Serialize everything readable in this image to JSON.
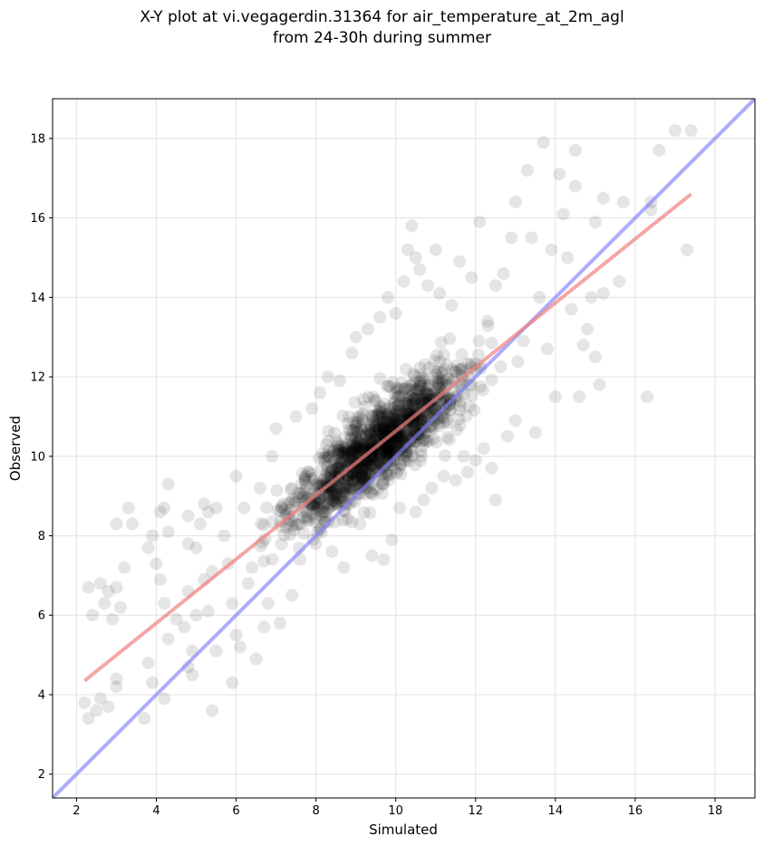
{
  "title": {
    "line1": "X-Y plot at vi.vegagerdin.31364 for air_temperature_at_2m_agl",
    "line2": "from 24-30h during summer"
  },
  "chart_data": {
    "type": "scatter",
    "xlabel": "Simulated",
    "ylabel": "Observed",
    "xlim": [
      1.4,
      19.0
    ],
    "ylim": [
      1.4,
      19.0
    ],
    "xticks": [
      2,
      4,
      6,
      8,
      10,
      12,
      14,
      16,
      18
    ],
    "yticks": [
      2,
      4,
      6,
      8,
      10,
      12,
      14,
      16,
      18
    ],
    "grid": true,
    "point_color": "#000000",
    "point_opacity": 0.1,
    "approx_point_count": 1500,
    "regression_line": {
      "color": "#f08080",
      "x": [
        2.2,
        17.4
      ],
      "y": [
        4.35,
        16.6
      ]
    },
    "identity_line": {
      "color": "#7f7fff",
      "x": [
        1.4,
        19.0
      ],
      "y": [
        1.4,
        19.0
      ]
    },
    "points": [
      [
        2.2,
        3.8
      ],
      [
        2.3,
        3.4
      ],
      [
        2.5,
        3.6
      ],
      [
        2.6,
        3.9
      ],
      [
        2.8,
        3.7
      ],
      [
        2.4,
        6.0
      ],
      [
        2.6,
        6.8
      ],
      [
        2.7,
        6.3
      ],
      [
        2.9,
        5.9
      ],
      [
        2.8,
        6.6
      ],
      [
        2.3,
        6.7
      ],
      [
        3.0,
        8.3
      ],
      [
        3.3,
        8.7
      ],
      [
        3.4,
        8.3
      ],
      [
        3.2,
        7.2
      ],
      [
        3.0,
        6.7
      ],
      [
        3.1,
        6.2
      ],
      [
        3.0,
        4.4
      ],
      [
        3.0,
        4.2
      ],
      [
        3.7,
        3.4
      ],
      [
        3.9,
        4.3
      ],
      [
        3.8,
        4.8
      ],
      [
        4.2,
        3.9
      ],
      [
        3.8,
        7.7
      ],
      [
        3.9,
        8.0
      ],
      [
        4.1,
        8.6
      ],
      [
        4.2,
        8.7
      ],
      [
        4.3,
        8.1
      ],
      [
        4.3,
        9.3
      ],
      [
        4.0,
        7.3
      ],
      [
        4.1,
        6.9
      ],
      [
        4.2,
        6.3
      ],
      [
        4.3,
        5.4
      ],
      [
        4.5,
        5.9
      ],
      [
        4.7,
        5.7
      ],
      [
        4.9,
        5.1
      ],
      [
        4.8,
        4.7
      ],
      [
        4.9,
        4.5
      ],
      [
        4.8,
        6.6
      ],
      [
        4.8,
        7.8
      ],
      [
        4.8,
        8.5
      ],
      [
        5.0,
        7.7
      ],
      [
        5.1,
        8.3
      ],
      [
        5.2,
        8.8
      ],
      [
        5.3,
        8.6
      ],
      [
        5.4,
        7.1
      ],
      [
        5.2,
        6.9
      ],
      [
        5.0,
        6.0
      ],
      [
        5.3,
        6.1
      ],
      [
        5.5,
        5.1
      ],
      [
        5.4,
        3.6
      ],
      [
        5.5,
        8.7
      ],
      [
        5.7,
        8.0
      ],
      [
        5.8,
        7.3
      ],
      [
        5.9,
        6.3
      ],
      [
        5.9,
        4.3
      ],
      [
        6.0,
        5.5
      ],
      [
        6.0,
        9.5
      ],
      [
        6.1,
        5.2
      ],
      [
        6.2,
        8.7
      ],
      [
        6.3,
        6.8
      ],
      [
        6.4,
        7.2
      ],
      [
        6.5,
        4.9
      ],
      [
        6.6,
        9.2
      ],
      [
        6.7,
        5.7
      ],
      [
        6.8,
        6.3
      ],
      [
        6.9,
        10.0
      ],
      [
        7.0,
        10.7
      ],
      [
        7.1,
        5.8
      ],
      [
        7.3,
        8.3
      ],
      [
        7.4,
        6.5
      ],
      [
        7.5,
        11.0
      ],
      [
        7.6,
        7.4
      ],
      [
        7.8,
        9.6
      ],
      [
        7.9,
        11.2
      ],
      [
        8.0,
        7.8
      ],
      [
        8.1,
        11.6
      ],
      [
        8.3,
        12.0
      ],
      [
        8.4,
        7.6
      ],
      [
        8.6,
        11.9
      ],
      [
        8.7,
        7.2
      ],
      [
        8.9,
        12.6
      ],
      [
        9.0,
        13.0
      ],
      [
        9.1,
        8.3
      ],
      [
        9.3,
        13.2
      ],
      [
        9.4,
        7.5
      ],
      [
        9.6,
        13.5
      ],
      [
        9.7,
        7.4
      ],
      [
        9.8,
        14.0
      ],
      [
        9.9,
        7.9
      ],
      [
        10.0,
        13.6
      ],
      [
        10.1,
        8.7
      ],
      [
        10.2,
        14.4
      ],
      [
        10.3,
        15.2
      ],
      [
        10.4,
        15.8
      ],
      [
        10.5,
        15.0
      ],
      [
        10.5,
        8.6
      ],
      [
        10.6,
        14.7
      ],
      [
        10.7,
        8.9
      ],
      [
        10.8,
        14.3
      ],
      [
        10.9,
        9.2
      ],
      [
        11.0,
        15.2
      ],
      [
        11.1,
        14.1
      ],
      [
        11.2,
        9.5
      ],
      [
        11.4,
        13.8
      ],
      [
        11.5,
        9.4
      ],
      [
        11.6,
        14.9
      ],
      [
        11.7,
        10.0
      ],
      [
        11.8,
        9.6
      ],
      [
        11.9,
        14.5
      ],
      [
        12.0,
        9.9
      ],
      [
        12.1,
        15.9
      ],
      [
        12.2,
        10.2
      ],
      [
        12.3,
        13.4
      ],
      [
        12.4,
        9.7
      ],
      [
        12.5,
        8.9
      ],
      [
        12.5,
        14.3
      ],
      [
        12.7,
        14.6
      ],
      [
        12.8,
        10.5
      ],
      [
        12.9,
        15.5
      ],
      [
        13.0,
        16.4
      ],
      [
        13.0,
        10.9
      ],
      [
        13.2,
        12.9
      ],
      [
        13.3,
        17.2
      ],
      [
        13.4,
        15.5
      ],
      [
        13.5,
        10.6
      ],
      [
        13.6,
        14.0
      ],
      [
        13.7,
        17.9
      ],
      [
        13.8,
        12.7
      ],
      [
        13.9,
        15.2
      ],
      [
        14.0,
        11.5
      ],
      [
        14.1,
        17.1
      ],
      [
        14.2,
        16.1
      ],
      [
        14.3,
        15.0
      ],
      [
        14.4,
        13.7
      ],
      [
        14.5,
        17.7
      ],
      [
        14.5,
        16.8
      ],
      [
        14.6,
        11.5
      ],
      [
        14.7,
        12.8
      ],
      [
        14.8,
        13.2
      ],
      [
        14.9,
        14.0
      ],
      [
        15.0,
        15.9
      ],
      [
        15.0,
        12.5
      ],
      [
        15.1,
        11.8
      ],
      [
        15.2,
        16.5
      ],
      [
        15.2,
        14.1
      ],
      [
        15.6,
        14.4
      ],
      [
        15.7,
        16.4
      ],
      [
        16.3,
        11.5
      ],
      [
        16.4,
        16.2
      ],
      [
        16.4,
        16.4
      ],
      [
        16.6,
        17.7
      ],
      [
        17.0,
        18.2
      ],
      [
        17.3,
        15.2
      ],
      [
        17.4,
        18.2
      ]
    ]
  }
}
